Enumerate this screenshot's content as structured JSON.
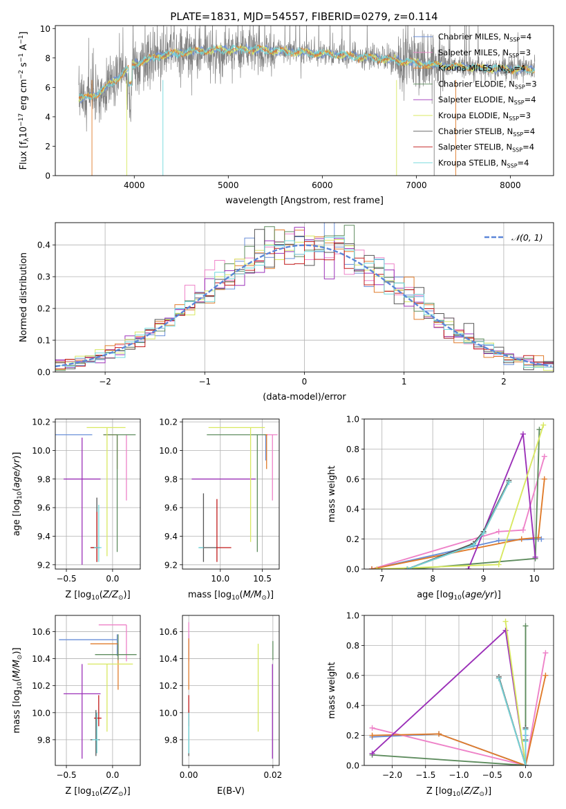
{
  "figure": {
    "title": "PLATE=1831, MJD=54557, FIBERID=0279, z=0.114"
  },
  "legend_entries": [
    {
      "name": "Chabrier MILES, N",
      "sub": "SSP",
      "suffix": "=4",
      "color": "#6a8fd8"
    },
    {
      "name": "Salpeter MILES, N",
      "sub": "SSP",
      "suffix": "=3",
      "color": "#ee82c8"
    },
    {
      "name": "Kroupa MILES, N",
      "sub": "SSP",
      "suffix": "=4",
      "color": "#e07b2a"
    },
    {
      "name": "Chabrier ELODIE, N",
      "sub": "SSP",
      "suffix": "=3",
      "color": "#5e8c5e"
    },
    {
      "name": "Salpeter ELODIE, N",
      "sub": "SSP",
      "suffix": "=4",
      "color": "#9b30b8"
    },
    {
      "name": "Kroupa ELODIE, N",
      "sub": "SSP",
      "suffix": "=3",
      "color": "#d8e860"
    },
    {
      "name": "Chabrier STELIB, N",
      "sub": "SSP",
      "suffix": "=4",
      "color": "#555555"
    },
    {
      "name": "Salpeter STELIB, N",
      "sub": "SSP",
      "suffix": "=4",
      "color": "#c01818"
    },
    {
      "name": "Kroupa STELIB, N",
      "sub": "SSP",
      "suffix": "=4",
      "color": "#70d8dc"
    }
  ],
  "chart_data": [
    {
      "id": "spectrum",
      "type": "line",
      "xlabel": "wavelength [Angstrom, rest frame]",
      "ylabel": "Flux [f_λ10^-17 erg cm^-2 s^-1 A^-1]",
      "xlim": [
        3160,
        8460
      ],
      "ylim": [
        0,
        10.2
      ],
      "xticks": [
        4000,
        5000,
        6000,
        7000,
        8000
      ],
      "yticks": [
        0,
        2,
        4,
        6,
        8,
        10
      ],
      "data_color": "#808080",
      "model_colors": [
        "#6a8fd8",
        "#d8e860",
        "#e07b2a",
        "#70d8dc"
      ],
      "x_range": [
        3410,
        8260
      ],
      "continuum": [
        [
          3410,
          5.2
        ],
        [
          3600,
          5.5
        ],
        [
          3800,
          6.5
        ],
        [
          4000,
          7.6
        ],
        [
          4300,
          8.2
        ],
        [
          4700,
          8.5
        ],
        [
          5200,
          8.6
        ],
        [
          5700,
          8.4
        ],
        [
          6200,
          8.2
        ],
        [
          6700,
          7.9
        ],
        [
          7200,
          7.5
        ],
        [
          7700,
          7.3
        ],
        [
          8260,
          7.2
        ]
      ]
    },
    {
      "id": "residuals",
      "type": "line",
      "xlabel": "(data-model)/error",
      "ylabel": "Normed distribution",
      "xlim": [
        -2.5,
        2.5
      ],
      "ylim": [
        0,
        0.47
      ],
      "xticks": [
        -2,
        -1,
        0,
        1,
        2
      ],
      "yticks": [
        0.0,
        0.1,
        0.2,
        0.3,
        0.4
      ],
      "series": [
        {
          "name": "𝒩(0, 1)",
          "type": "gaussian",
          "mean": 0,
          "sigma": 1,
          "color": "#5b86d8"
        }
      ],
      "hist_bin_width": 0.1,
      "hist_colors": [
        "#6a8fd8",
        "#ee82c8",
        "#e07b2a",
        "#5e8c5e",
        "#9b30b8",
        "#d8e860",
        "#555555",
        "#c01818",
        "#70d8dc"
      ]
    },
    {
      "id": "age-vs-Z",
      "type": "scatter",
      "xlabel": "Z [log10(Z/Z⊙)]",
      "ylabel": "age [log10(age/yr)]",
      "xlim": [
        -0.62,
        0.3
      ],
      "ylim": [
        9.17,
        10.22
      ],
      "xticks": [
        -0.5,
        0.0
      ],
      "yticks": [
        9.2,
        9.4,
        9.6,
        9.8,
        10.0,
        10.2
      ],
      "points": [
        {
          "x": -0.42,
          "xerr": [
            0.2,
            0.2
          ],
          "y": 10.11,
          "yerr": [
            0,
            0
          ],
          "color": "#6a8fd8"
        },
        {
          "x": 0.15,
          "xerr": [
            0,
            0
          ],
          "y": 10.11,
          "yerr": [
            0.46,
            0
          ],
          "color": "#ee82c8"
        },
        {
          "x": 0.05,
          "xerr": [
            0.15,
            0
          ],
          "y": 10.11,
          "yerr": [
            0.24,
            0
          ],
          "color": "#e07b2a"
        },
        {
          "x": 0.05,
          "xerr": [
            0.15,
            0.2
          ],
          "y": 10.11,
          "yerr": [
            0.82,
            0
          ],
          "color": "#5e8c5e"
        },
        {
          "x": -0.33,
          "xerr": [
            0.2,
            0.2
          ],
          "y": 9.8,
          "yerr": [
            0.6,
            0.29
          ],
          "color": "#9b30b8"
        },
        {
          "x": -0.06,
          "xerr": [
            0.22,
            0.2
          ],
          "y": 10.16,
          "yerr": [
            0.9,
            0
          ],
          "color": "#d8e860"
        },
        {
          "x": -0.17,
          "xerr": [
            0.06,
            0.03
          ],
          "y": 9.32,
          "yerr": [
            0.1,
            0.35
          ],
          "color": "#555555"
        },
        {
          "x": -0.17,
          "xerr": [
            0.07,
            0.03
          ],
          "y": 9.32,
          "yerr": [
            0.1,
            0.25
          ],
          "color": "#c01818"
        },
        {
          "x": -0.15,
          "xerr": [
            0.05,
            0.03
          ],
          "y": 9.32,
          "yerr": [
            0.1,
            0.3
          ],
          "color": "#70d8dc"
        }
      ]
    },
    {
      "id": "age-vs-mass",
      "type": "scatter",
      "xlabel": "mass [log10(M/M⊙)]",
      "ylabel": "",
      "xlim": [
        9.55,
        10.7
      ],
      "ylim": [
        9.17,
        10.22
      ],
      "xticks": [
        10.0,
        10.5
      ],
      "yticks": [
        9.2,
        9.4,
        9.6,
        9.8,
        10.0,
        10.2
      ],
      "points": [
        {
          "x": 10.54,
          "xerr": [
            0,
            0.01
          ],
          "y": 10.11,
          "yerr": [
            0.18,
            0
          ],
          "color": "#6a8fd8"
        },
        {
          "x": 10.62,
          "xerr": [
            0.08,
            0.06
          ],
          "y": 10.11,
          "yerr": [
            0.46,
            0
          ],
          "color": "#ee82c8"
        },
        {
          "x": 10.55,
          "xerr": [
            0.03,
            0.01
          ],
          "y": 10.11,
          "yerr": [
            0.24,
            0
          ],
          "color": "#e07b2a"
        },
        {
          "x": 10.44,
          "xerr": [
            0.6,
            0.1
          ],
          "y": 10.11,
          "yerr": [
            0.82,
            0
          ],
          "color": "#5e8c5e"
        },
        {
          "x": 10.14,
          "xerr": [
            0.48,
            0.28
          ],
          "y": 9.8,
          "yerr": [
            0,
            0
          ],
          "color": "#9b30b8"
        },
        {
          "x": 10.36,
          "xerr": [
            0.5,
            0.17
          ],
          "y": 10.16,
          "yerr": [
            0.8,
            0
          ],
          "color": "#d8e860"
        },
        {
          "x": 9.8,
          "xerr": [
            0.05,
            0.16
          ],
          "y": 9.32,
          "yerr": [
            0.1,
            0.38
          ],
          "color": "#555555"
        },
        {
          "x": 9.96,
          "xerr": [
            0,
            0.17
          ],
          "y": 9.32,
          "yerr": [
            0.1,
            0.34
          ],
          "color": "#c01818"
        },
        {
          "x": 9.8,
          "xerr": [
            0.06,
            0
          ],
          "y": 9.32,
          "yerr": [
            0,
            0
          ],
          "color": "#70d8dc"
        }
      ]
    },
    {
      "id": "weight-vs-age",
      "type": "line",
      "xlabel": "age [log10(age/yr)]",
      "ylabel": "mass weight",
      "xlim": [
        6.65,
        10.38
      ],
      "ylim": [
        0,
        1.0
      ],
      "xticks": [
        7,
        8,
        9,
        10
      ],
      "yticks": [
        0.0,
        0.2,
        0.4,
        0.6,
        0.8,
        1.0
      ],
      "series": [
        {
          "name": "Chabrier MILES",
          "color": "#6a8fd8",
          "x": [
            6.8,
            9.3,
            10.08,
            10.14
          ],
          "y": [
            0.0,
            0.19,
            0.2,
            0.2
          ]
        },
        {
          "name": "Salpeter MILES",
          "color": "#ee82c8",
          "x": [
            6.8,
            9.3,
            9.78,
            10.2
          ],
          "y": [
            0.0,
            0.25,
            0.26,
            0.75
          ]
        },
        {
          "name": "Kroupa MILES",
          "color": "#e07b2a",
          "x": [
            6.8,
            9.75,
            10.08,
            10.2
          ],
          "y": [
            0.0,
            0.2,
            0.21,
            0.6
          ]
        },
        {
          "name": "Chabrier ELODIE",
          "color": "#5e8c5e",
          "x": [
            7.6,
            10.02,
            10.1
          ],
          "y": [
            0.0,
            0.07,
            0.93
          ]
        },
        {
          "name": "Salpeter ELODIE",
          "color": "#9b30b8",
          "x": [
            8.7,
            9.78,
            10.02
          ],
          "y": [
            0.0,
            0.9,
            0.08
          ]
        },
        {
          "name": "Kroupa ELODIE",
          "color": "#d8e860",
          "x": [
            6.9,
            9.3,
            10.18
          ],
          "y": [
            0.0,
            0.03,
            0.96
          ]
        },
        {
          "name": "Chabrier STELIB",
          "color": "#555555",
          "x": [
            7.5,
            8.8,
            9.0,
            9.5
          ],
          "y": [
            0.0,
            0.17,
            0.25,
            0.59
          ]
        },
        {
          "name": "Salpeter STELIB",
          "color": "#c01818",
          "x": [
            7.5,
            8.8,
            9.0,
            9.5
          ],
          "y": [
            0.0,
            0.16,
            0.24,
            0.58
          ]
        },
        {
          "name": "Kroupa STELIB",
          "color": "#70d8dc",
          "x": [
            7.5,
            8.8,
            9.0,
            9.5
          ],
          "y": [
            0.0,
            0.16,
            0.24,
            0.58
          ]
        }
      ]
    },
    {
      "id": "mass-vs-Z",
      "type": "scatter",
      "xlabel": "Z [log10(Z/Z⊙)]",
      "ylabel": "mass [log10(M/M⊙)]",
      "xlim": [
        -0.62,
        0.3
      ],
      "ylim": [
        9.61,
        10.72
      ],
      "xticks": [
        -0.5,
        0.0
      ],
      "yticks": [
        9.8,
        10.0,
        10.2,
        10.4,
        10.6
      ],
      "points": [
        {
          "x": 0.05,
          "xerr": [
            0.63,
            0
          ],
          "y": 10.54,
          "yerr": [
            0.12,
            0.04
          ],
          "color": "#6a8fd8"
        },
        {
          "x": 0.15,
          "xerr": [
            0.3,
            0
          ],
          "y": 10.65,
          "yerr": [
            0.27,
            0
          ],
          "color": "#ee82c8"
        },
        {
          "x": 0.06,
          "xerr": [
            0.3,
            0
          ],
          "y": 10.51,
          "yerr": [
            0.34,
            0
          ],
          "color": "#e07b2a"
        },
        {
          "x": 0.06,
          "xerr": [
            0.25,
            0.2
          ],
          "y": 10.43,
          "yerr": [
            0.04,
            0.15
          ],
          "color": "#5e8c5e"
        },
        {
          "x": -0.33,
          "xerr": [
            0.2,
            0.2
          ],
          "y": 10.14,
          "yerr": [
            0.48,
            0.22
          ],
          "color": "#9b30b8"
        },
        {
          "x": -0.06,
          "xerr": [
            0.21,
            0.28
          ],
          "y": 10.36,
          "yerr": [
            0.5,
            0
          ],
          "color": "#d8e860"
        },
        {
          "x": -0.18,
          "xerr": [
            0.06,
            0.04
          ],
          "y": 9.8,
          "yerr": [
            0.12,
            0.22
          ],
          "color": "#555555"
        },
        {
          "x": -0.15,
          "xerr": [
            0.05,
            0.03
          ],
          "y": 9.96,
          "yerr": [
            0.06,
            0.17
          ],
          "color": "#c01818"
        },
        {
          "x": -0.17,
          "xerr": [
            0.05,
            0.02
          ],
          "y": 9.8,
          "yerr": [
            0.1,
            0.2
          ],
          "color": "#70d8dc"
        }
      ]
    },
    {
      "id": "mass-vs-ebv",
      "type": "scatter",
      "xlabel": "E(B-V)",
      "ylabel": "",
      "xlim": [
        -0.0015,
        0.0215
      ],
      "ylim": [
        9.61,
        10.72
      ],
      "xticks": [
        0.0,
        0.02
      ],
      "yticks": [
        9.8,
        10.0,
        10.2,
        10.4,
        10.6
      ],
      "points": [
        {
          "x": 0.0,
          "y": 10.54,
          "yerr": [
            0.12,
            0.04
          ],
          "color": "#6a8fd8"
        },
        {
          "x": 0.0,
          "y": 10.65,
          "yerr": [
            0.27,
            0.02
          ],
          "color": "#ee82c8"
        },
        {
          "x": 0.0,
          "y": 10.51,
          "yerr": [
            0.34,
            0.04
          ],
          "color": "#e07b2a"
        },
        {
          "x": 0.02,
          "y": 10.43,
          "yerr": [
            0.04,
            0.1
          ],
          "color": "#5e8c5e"
        },
        {
          "x": 0.0199,
          "y": 10.14,
          "yerr": [
            0.48,
            0.22
          ],
          "color": "#9b30b8"
        },
        {
          "x": 0.0165,
          "y": 10.36,
          "yerr": [
            0.5,
            0.15
          ],
          "color": "#d8e860"
        },
        {
          "x": 0.0,
          "y": 9.8,
          "yerr": [
            0.12,
            0.22
          ],
          "color": "#555555"
        },
        {
          "x": 0.0,
          "y": 9.96,
          "yerr": [
            0.06,
            0.17
          ],
          "color": "#c01818"
        },
        {
          "x": 0.0,
          "y": 9.8,
          "yerr": [
            0.1,
            0.2
          ],
          "color": "#70d8dc"
        }
      ]
    },
    {
      "id": "weight-vs-Z",
      "type": "line",
      "xlabel": "Z [log10(Z/Z⊙)]",
      "ylabel": "mass weight",
      "xlim": [
        -2.42,
        0.42
      ],
      "ylim": [
        0,
        1.0
      ],
      "xticks": [
        -2.0,
        -1.5,
        -1.0,
        -0.5,
        0.0
      ],
      "yticks": [
        0.0,
        0.2,
        0.4,
        0.6,
        0.8,
        1.0
      ],
      "series": [
        {
          "name": "Chabrier MILES",
          "color": "#6a8fd8",
          "x": [
            -2.3,
            -1.3,
            0.0,
            0.0
          ],
          "y": [
            0.19,
            0.21,
            0.0,
            0.2
          ]
        },
        {
          "name": "Salpeter MILES",
          "color": "#ee82c8",
          "x": [
            -2.3,
            0.0,
            0.3
          ],
          "y": [
            0.25,
            0.0,
            0.75
          ]
        },
        {
          "name": "Kroupa MILES",
          "color": "#e07b2a",
          "x": [
            -2.3,
            -1.3,
            0.0,
            0.3
          ],
          "y": [
            0.2,
            0.21,
            0.0,
            0.6
          ]
        },
        {
          "name": "Chabrier ELODIE",
          "color": "#5e8c5e",
          "x": [
            -2.3,
            0.0,
            0.0
          ],
          "y": [
            0.07,
            0.0,
            0.93
          ]
        },
        {
          "name": "Salpeter ELODIE",
          "color": "#9b30b8",
          "x": [
            -2.3,
            -0.3,
            0.0
          ],
          "y": [
            0.08,
            0.9,
            0.0
          ]
        },
        {
          "name": "Kroupa ELODIE",
          "color": "#d8e860",
          "x": [
            -0.3,
            0.0
          ],
          "y": [
            0.96,
            0.0
          ]
        },
        {
          "name": "Chabrier STELIB",
          "color": "#555555",
          "x": [
            -0.4,
            0.0,
            0.0,
            0.0
          ],
          "y": [
            0.59,
            0.0,
            0.25,
            0.17
          ]
        },
        {
          "name": "Salpeter STELIB",
          "color": "#c01818",
          "x": [
            -0.4,
            0.0,
            0.0,
            0.0
          ],
          "y": [
            0.58,
            0.0,
            0.24,
            0.16
          ]
        },
        {
          "name": "Kroupa STELIB",
          "color": "#70d8dc",
          "x": [
            -0.4,
            0.0,
            0.0,
            0.0
          ],
          "y": [
            0.58,
            0.0,
            0.24,
            0.16
          ]
        }
      ]
    }
  ]
}
